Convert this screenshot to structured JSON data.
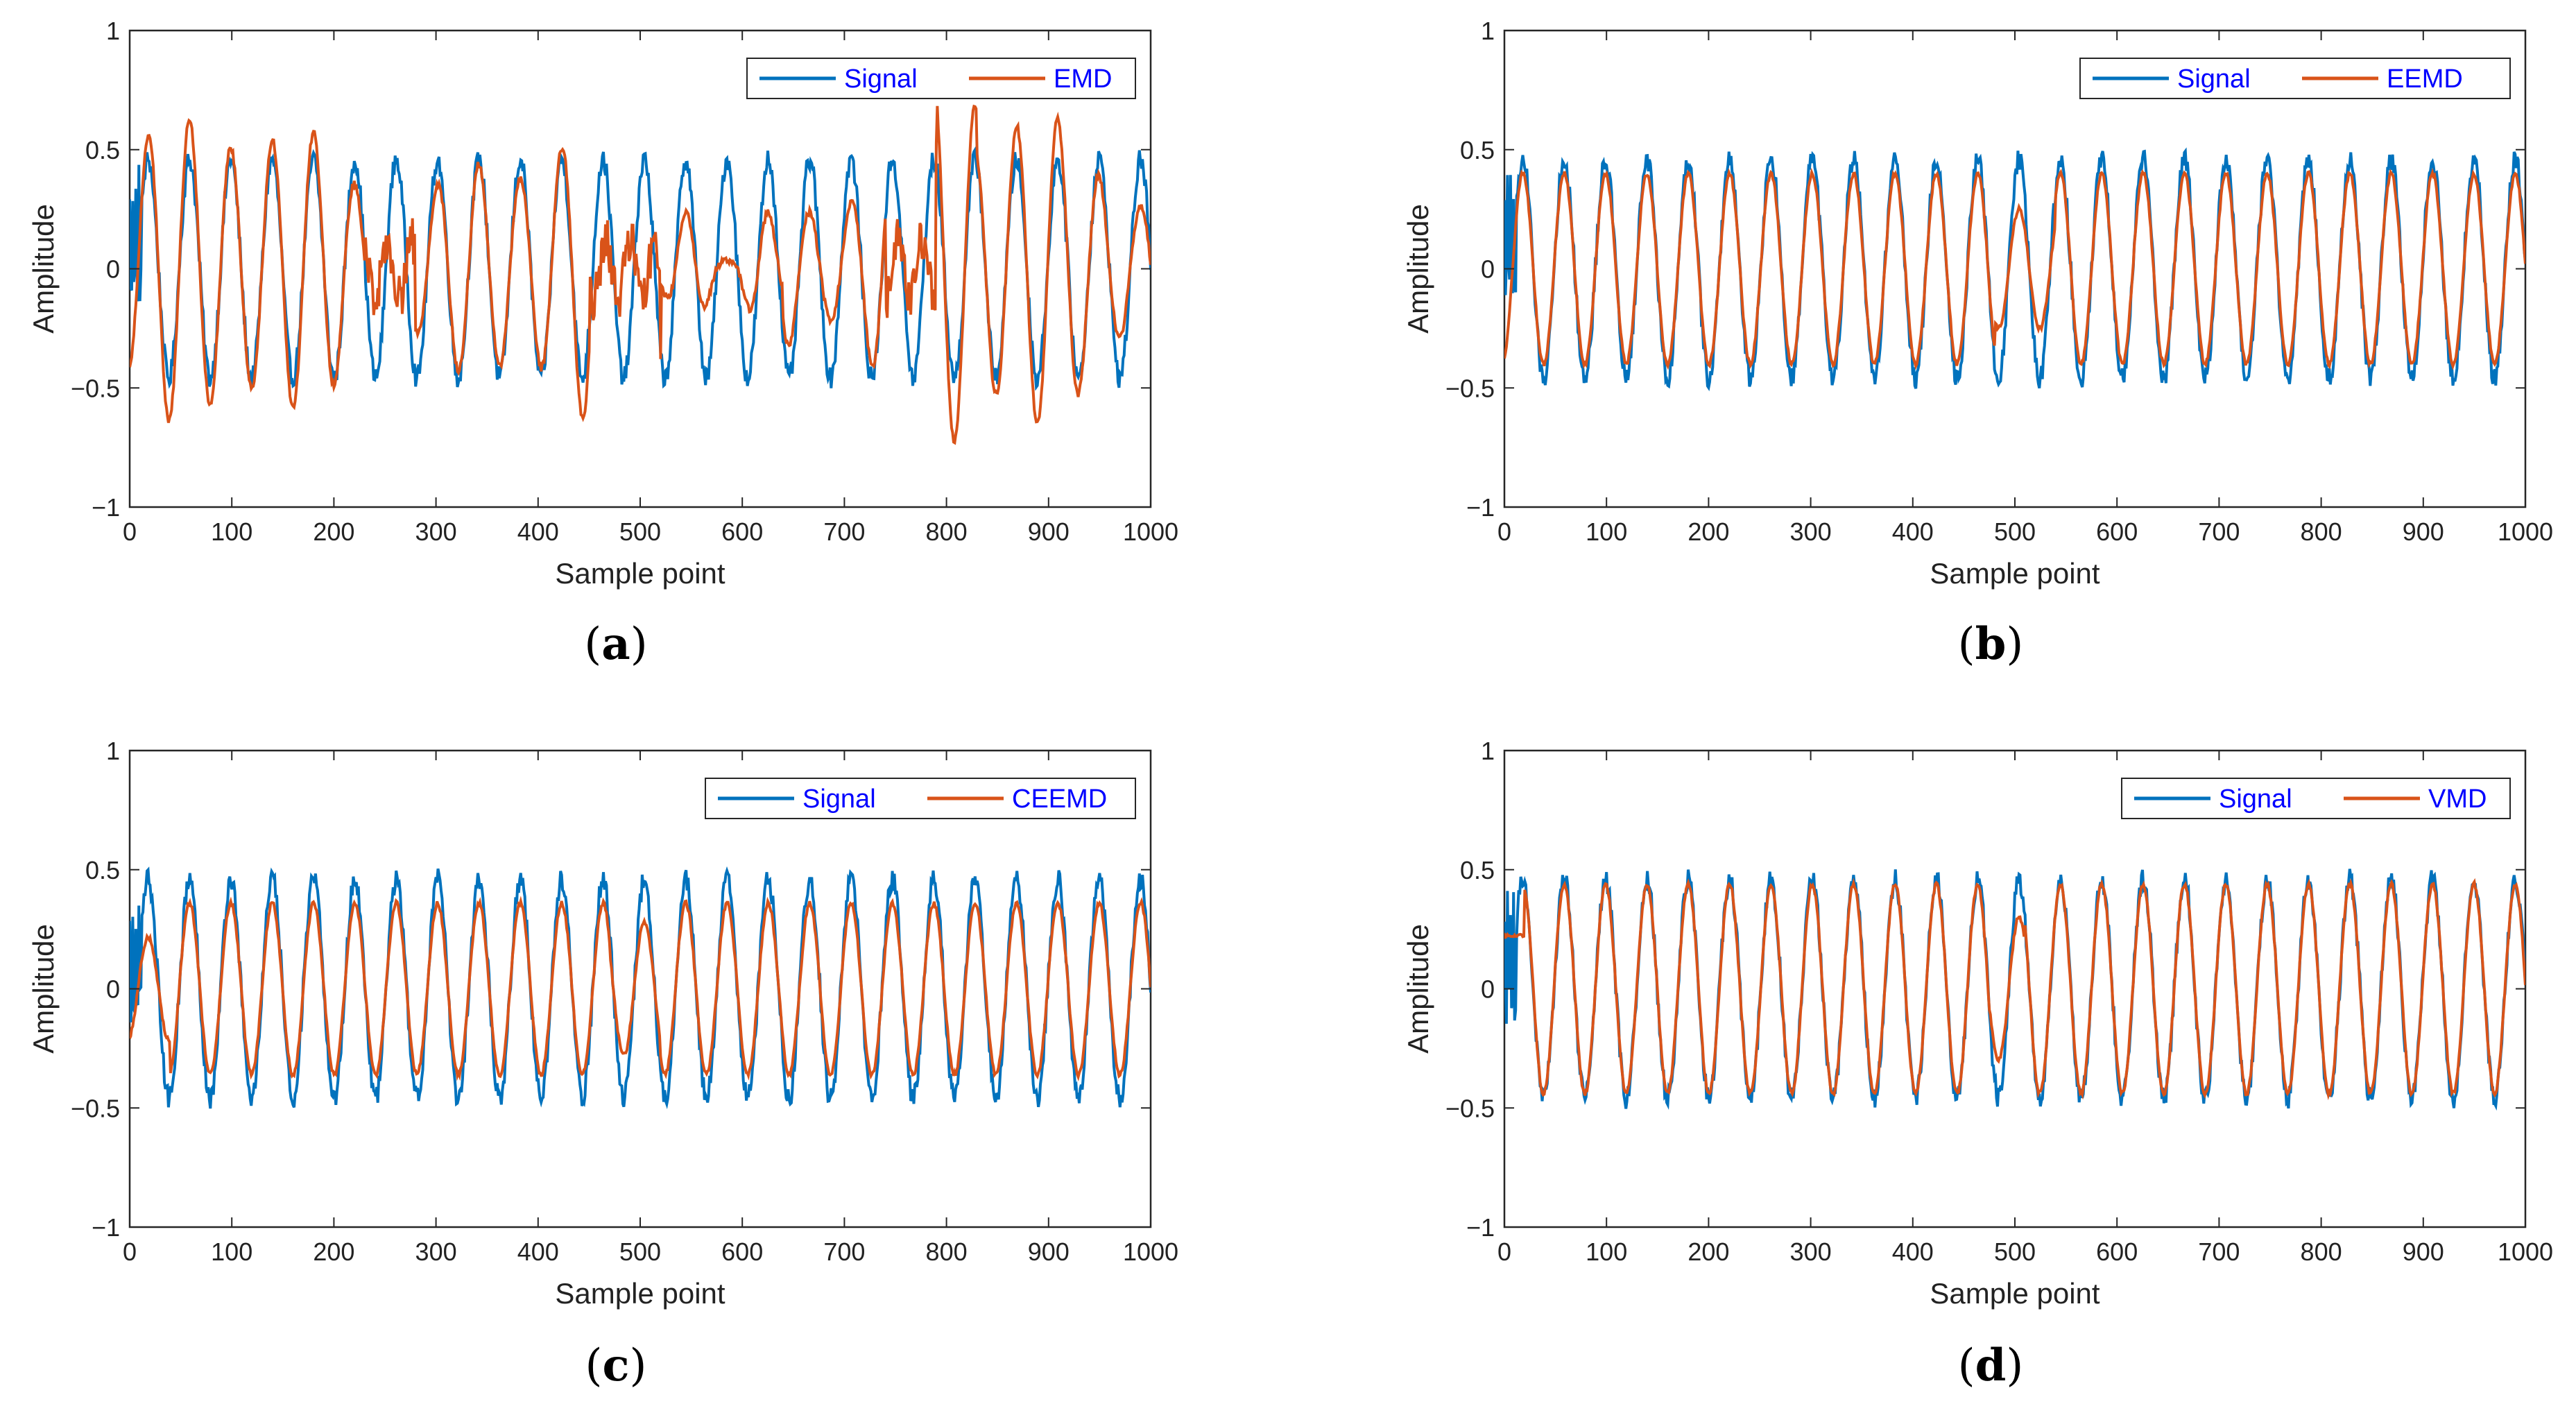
{
  "chart_data": [
    {
      "type": "line",
      "panel": "a",
      "caption_open": "(",
      "caption_letter": "a",
      "caption_close": ")",
      "xlabel": "Sample point",
      "ylabel": "Amplitude",
      "xlim": [
        0,
        1000
      ],
      "ylim": [
        -1,
        1
      ],
      "xticks": [
        0,
        100,
        200,
        300,
        400,
        500,
        600,
        700,
        800,
        900,
        1000
      ],
      "yticks": [
        1,
        0.5,
        0,
        -0.5,
        -1
      ],
      "ytick_labels": [
        "1",
        "0.5",
        "0",
        "−0.5",
        "−1"
      ],
      "legend": {
        "placement": "top-right"
      },
      "series": [
        {
          "name": "Signal",
          "color": "#0072BD"
        },
        {
          "name": "EMD",
          "color": "#D95319"
        }
      ]
    },
    {
      "type": "line",
      "panel": "b",
      "caption_open": "(",
      "caption_letter": "b",
      "caption_close": ")",
      "xlabel": "Sample point",
      "ylabel": "Amplitude",
      "xlim": [
        0,
        1000
      ],
      "ylim": [
        -1,
        1
      ],
      "xticks": [
        0,
        100,
        200,
        300,
        400,
        500,
        600,
        700,
        800,
        900,
        1000
      ],
      "yticks": [
        1,
        0.5,
        0,
        -0.5,
        -1
      ],
      "ytick_labels": [
        "1",
        "0.5",
        "0",
        "−0.5",
        "−1"
      ],
      "legend": {
        "placement": "top-right"
      },
      "series": [
        {
          "name": "Signal",
          "color": "#0072BD"
        },
        {
          "name": "EEMD",
          "color": "#D95319"
        }
      ]
    },
    {
      "type": "line",
      "panel": "c",
      "caption_open": "(",
      "caption_letter": "c",
      "caption_close": ")",
      "xlabel": "Sample point",
      "ylabel": "Amplitude",
      "xlim": [
        0,
        1000
      ],
      "ylim": [
        -1,
        1
      ],
      "xticks": [
        0,
        100,
        200,
        300,
        400,
        500,
        600,
        700,
        800,
        900,
        1000
      ],
      "yticks": [
        1,
        0.5,
        0,
        -0.5,
        -1
      ],
      "ytick_labels": [
        "1",
        "0.5",
        "0",
        "−0.5",
        "−1"
      ],
      "legend": {
        "placement": "top-right"
      },
      "series": [
        {
          "name": "Signal",
          "color": "#0072BD"
        },
        {
          "name": "CEEMD",
          "color": "#D95319"
        }
      ]
    },
    {
      "type": "line",
      "panel": "d",
      "caption_open": "(",
      "caption_letter": "d",
      "caption_close": ")",
      "xlabel": "Sample point",
      "ylabel": "Amplitude",
      "xlim": [
        0,
        1000
      ],
      "ylim": [
        -1,
        1
      ],
      "xticks": [
        0,
        100,
        200,
        300,
        400,
        500,
        600,
        700,
        800,
        900,
        1000
      ],
      "yticks": [
        1,
        0.5,
        0,
        -0.5,
        -1
      ],
      "ytick_labels": [
        "1",
        "0.5",
        "0",
        "−0.5",
        "−1"
      ],
      "legend": {
        "placement": "top-right"
      },
      "series": [
        {
          "name": "Signal",
          "color": "#0072BD"
        },
        {
          "name": "VMD",
          "color": "#D95319"
        }
      ]
    }
  ]
}
